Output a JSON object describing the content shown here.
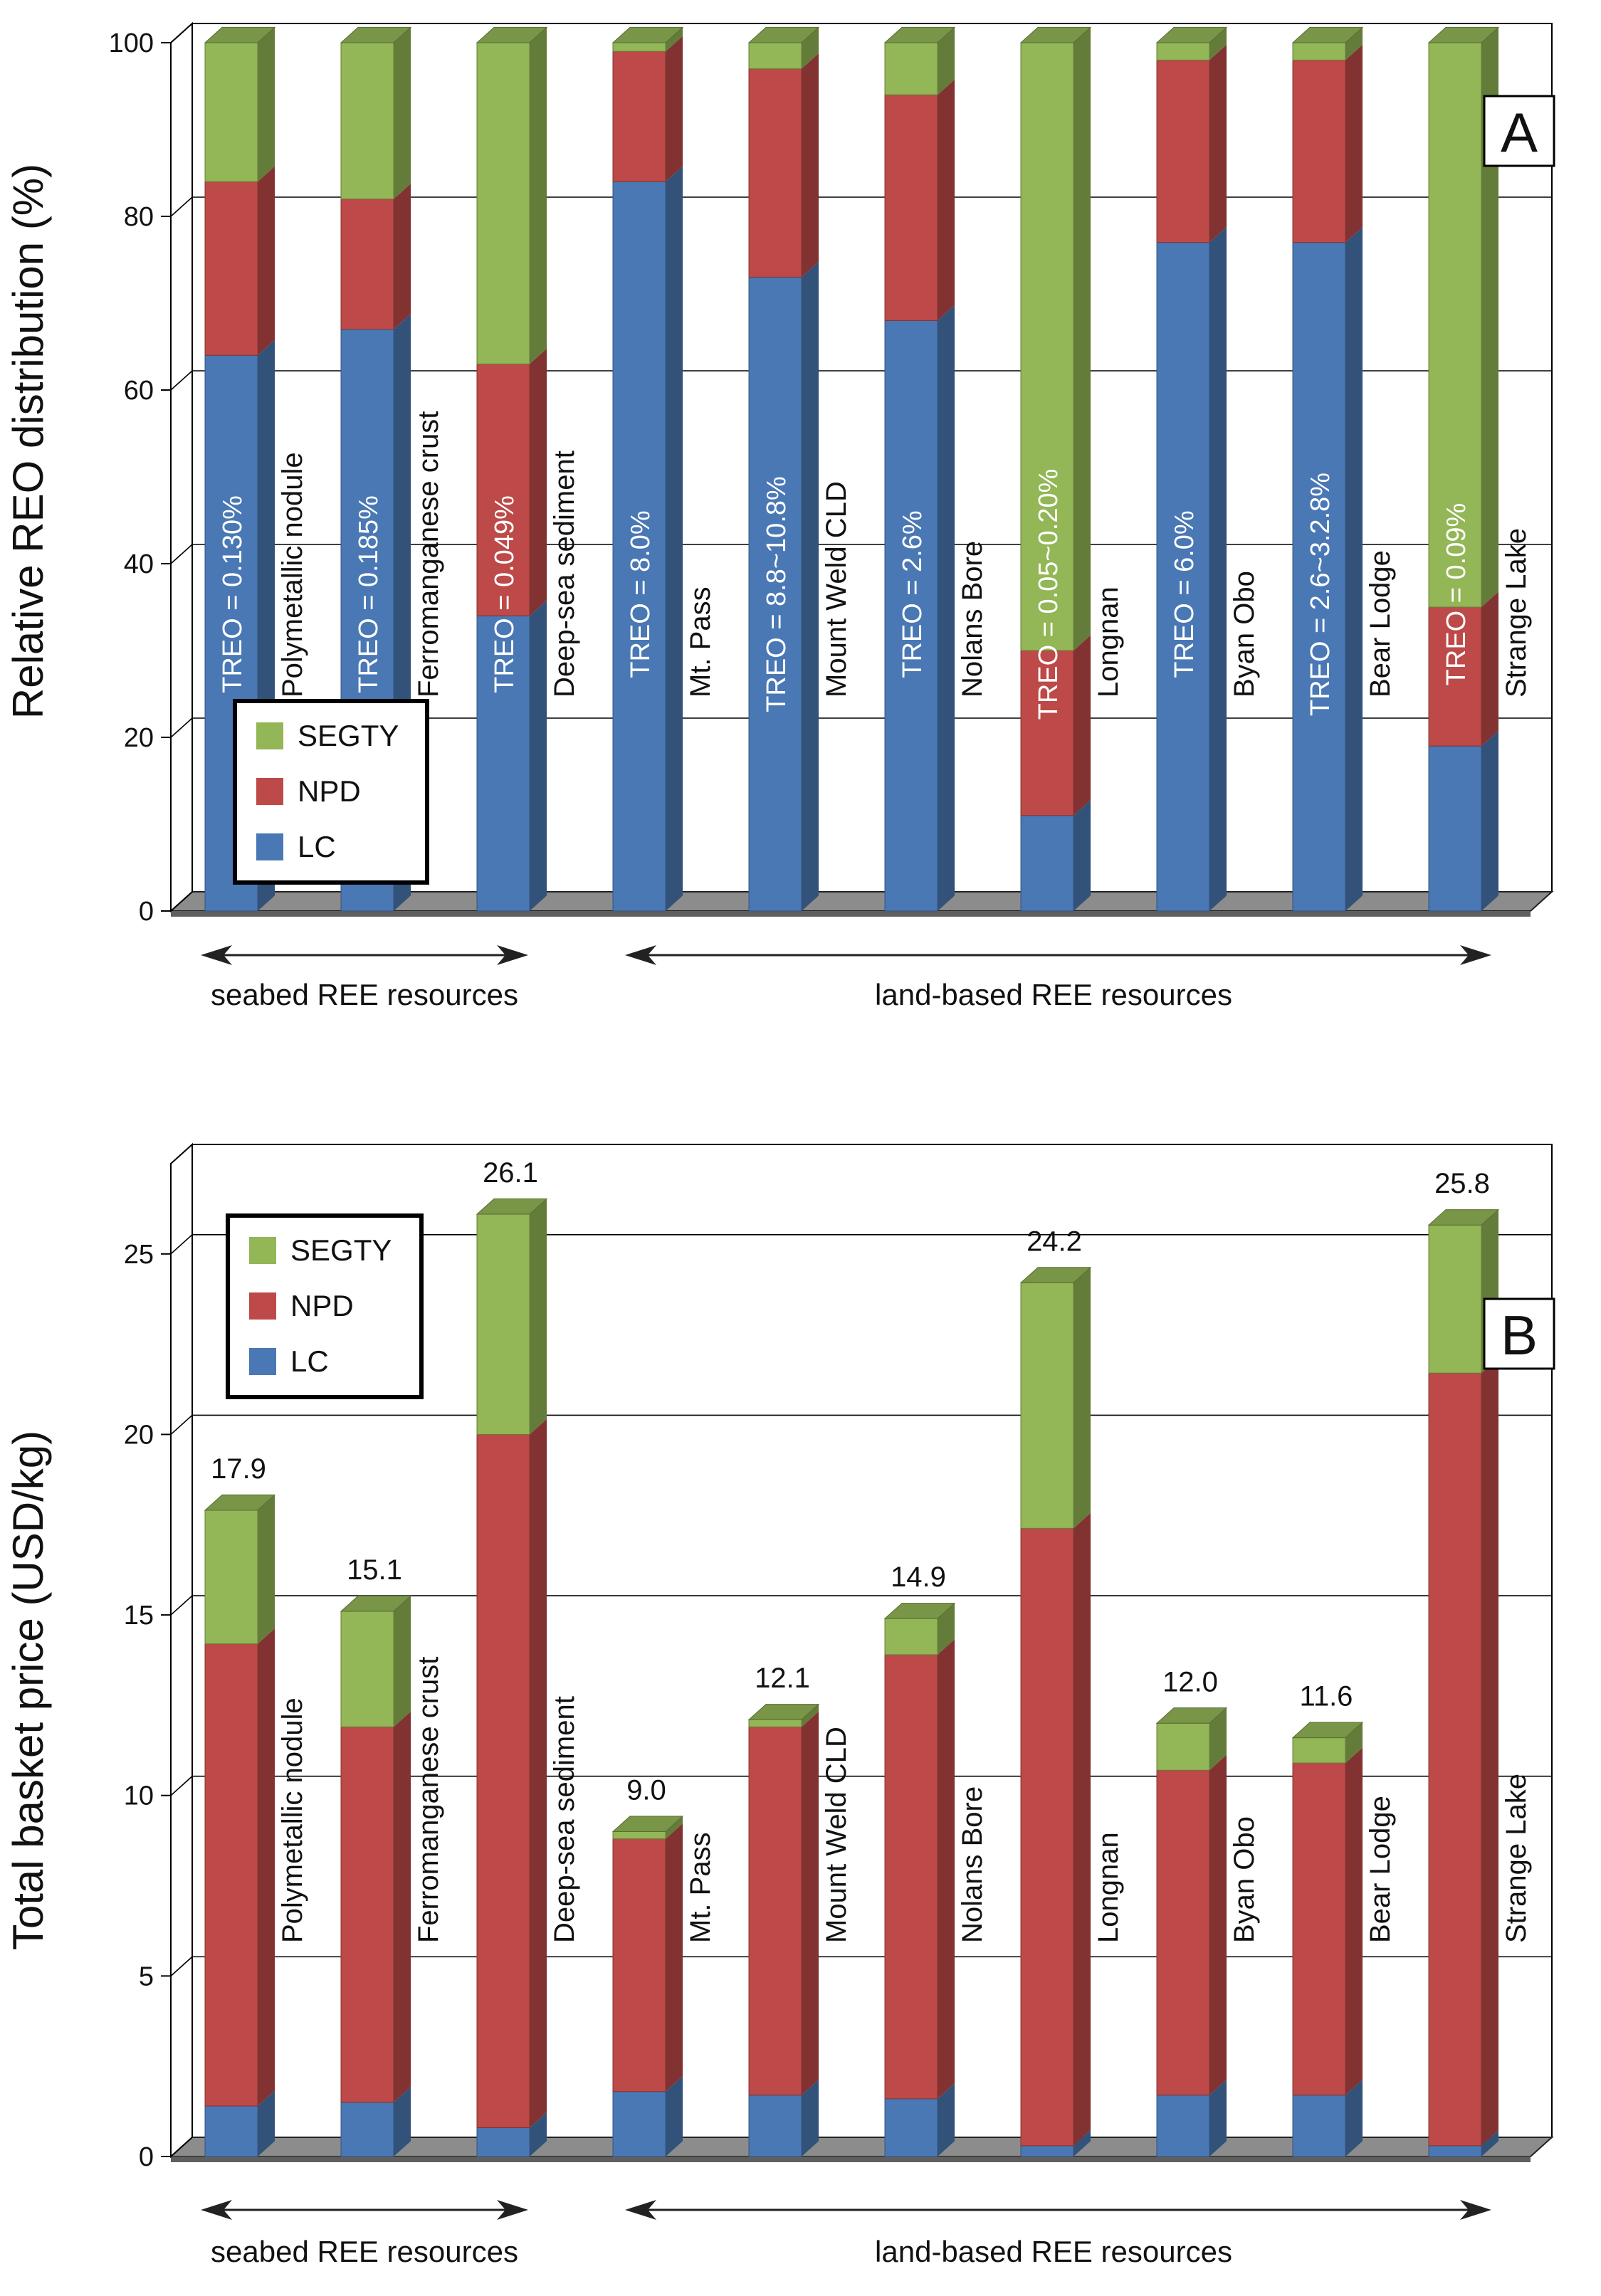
{
  "colors": {
    "LC": "#4a78b4",
    "NPD": "#bd4a48",
    "SEGTY": "#93b656",
    "floor": "#8c8c8c",
    "grid": "#000000",
    "text": "#111111"
  },
  "chart_data": [
    {
      "type": "bar",
      "stacked": true,
      "panel": "A",
      "title": "",
      "xlabel": "",
      "ylabel": "Relative REO distribution (%)",
      "ylim": [
        0,
        100
      ],
      "yticks": [
        "0",
        "20",
        "40",
        "60",
        "80",
        "100"
      ],
      "categories": [
        "Polymetallic nodule",
        "Ferromanganese crust",
        "Deep-sea sediment",
        "Mt. Pass",
        "Mount Weld CLD",
        "Nolans Bore",
        "Longnan",
        "Byan Obo",
        "Bear Lodge",
        "Strange Lake"
      ],
      "series": [
        {
          "name": "LC",
          "values": [
            64,
            67,
            34,
            84,
            73,
            68,
            11,
            77,
            77,
            19
          ]
        },
        {
          "name": "NPD",
          "values": [
            20,
            15,
            29,
            15,
            24,
            26,
            19,
            21,
            21,
            16
          ]
        },
        {
          "name": "SEGTY",
          "values": [
            16,
            18,
            37,
            1,
            3,
            6,
            70,
            2,
            2,
            65
          ]
        }
      ],
      "bar_labels": [
        "TREO = 0.130%",
        "TREO = 0.185%",
        "TREO = 0.049%",
        "TREO = 8.0%",
        "TREO = 8.8~10.8%",
        "TREO = 2.6%",
        "TREO = 0.05~0.20%",
        "TREO = 6.0%",
        "TREO = 2.6~3.2.8%",
        "TREO = 0.09%"
      ],
      "legend": {
        "placement": "bottom-left",
        "entries": [
          "SEGTY",
          "NPD",
          "LC"
        ]
      },
      "panel_label": "A",
      "groups": [
        "seabed REE resources",
        "land-based REE resources"
      ]
    },
    {
      "type": "bar",
      "stacked": true,
      "panel": "B",
      "title": "",
      "xlabel": "",
      "ylabel": "Total basket price (USD/kg)",
      "ylim": [
        0,
        27.5
      ],
      "yticks": [
        "0",
        "5",
        "10",
        "15",
        "20",
        "25"
      ],
      "categories": [
        "Polymetallic nodule",
        "Ferromanganese crust",
        "Deep-sea sediment",
        "Mt. Pass",
        "Mount Weld CLD",
        "Nolans Bore",
        "Longnan",
        "Byan Obo",
        "Bear Lodge",
        "Strange Lake"
      ],
      "series": [
        {
          "name": "LC",
          "values": [
            1.4,
            1.5,
            0.8,
            1.8,
            1.7,
            1.6,
            0.3,
            1.7,
            1.7,
            0.3
          ]
        },
        {
          "name": "NPD",
          "values": [
            12.8,
            10.4,
            19.2,
            7.0,
            10.2,
            12.3,
            17.1,
            9.0,
            9.2,
            21.4
          ]
        },
        {
          "name": "SEGTY",
          "values": [
            3.7,
            3.2,
            6.1,
            0.2,
            0.2,
            1.0,
            6.8,
            1.3,
            0.7,
            4.1
          ]
        }
      ],
      "totals": [
        "17.9",
        "15.1",
        "26.1",
        "9.0",
        "12.1",
        "14.9",
        "24.2",
        "12.0",
        "11.6",
        "25.8"
      ],
      "legend": {
        "placement": "top-left",
        "entries": [
          "SEGTY",
          "NPD",
          "LC"
        ]
      },
      "panel_label": "B",
      "groups": [
        "seabed REE resources",
        "land-based REE resources"
      ]
    }
  ]
}
